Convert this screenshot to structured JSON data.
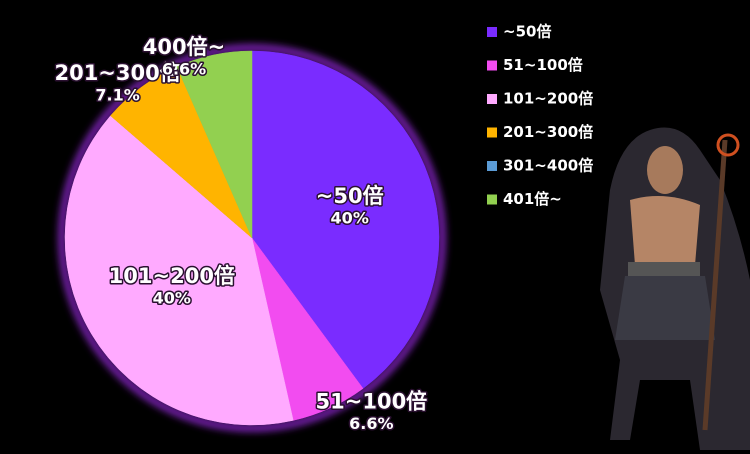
{
  "chart_data": {
    "type": "pie",
    "categories": [
      "~50倍",
      "51~100倍",
      "101~200倍",
      "201~300倍",
      "301~400倍",
      "401倍~"
    ],
    "slice_labels": [
      "~50倍",
      "51~100倍",
      "101~200倍",
      "201~300倍",
      null,
      "400倍~"
    ],
    "values": [
      40,
      6.6,
      40,
      7.1,
      0,
      6.6
    ],
    "value_labels": [
      "40%",
      "6.6%",
      "40%",
      "7.1%",
      null,
      "6.6%"
    ],
    "colors": [
      "#7a2cff",
      "#f24cf0",
      "#ffaaff",
      "#ffb400",
      "#5b9bd5",
      "#92d050"
    ],
    "legend": "top-right"
  }
}
